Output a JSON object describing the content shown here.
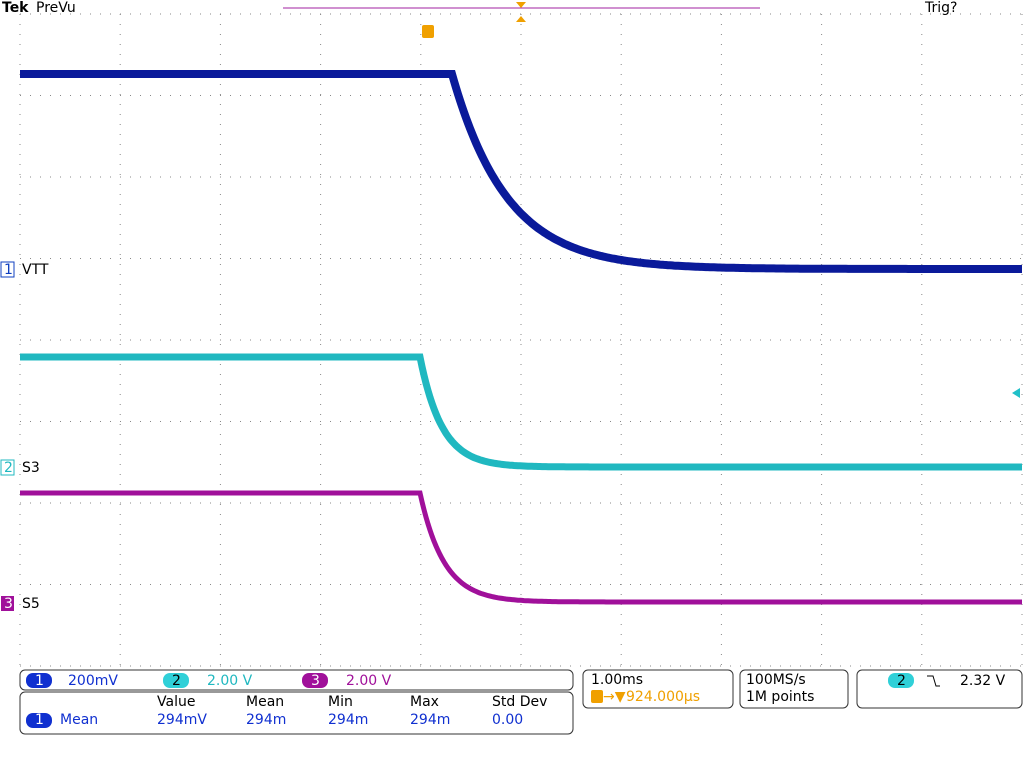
{
  "header": {
    "brand": "Tek",
    "mode": "PreVu",
    "trigger_status": "Trig?"
  },
  "channels": [
    {
      "number": "1",
      "label": "VTT",
      "scale": "200mV"
    },
    {
      "number": "2",
      "label": "S3",
      "scale": "2.00 V"
    },
    {
      "number": "3",
      "label": "S5",
      "scale": "2.00 V"
    }
  ],
  "timebase": {
    "scale": "1.00ms",
    "trigger_position": "924.000µs"
  },
  "acquisition": {
    "sample_rate": "100MS/s",
    "record_length": "1M points"
  },
  "trigger": {
    "source": "2",
    "level": "2.32 V"
  },
  "measurements": {
    "headers": [
      "Value",
      "Mean",
      "Min",
      "Max",
      "Std Dev"
    ],
    "rows": [
      {
        "source": "1",
        "name": "Mean",
        "cells": [
          "294mV",
          "294m",
          "294m",
          "294m",
          "0.00"
        ]
      }
    ]
  }
}
